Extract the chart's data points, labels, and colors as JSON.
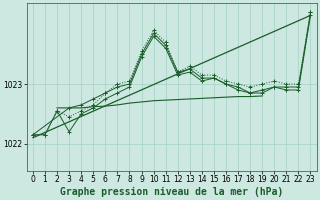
{
  "background_color": "#cce8e0",
  "grid_color": "#aad4ca",
  "line_color": "#1a5c2a",
  "xlabel": "Graphe pression niveau de la mer (hPa)",
  "xlabel_fontsize": 7,
  "ylim": [
    1021.55,
    1024.35
  ],
  "xlim": [
    -0.5,
    23.5
  ],
  "yticks": [
    1022,
    1023
  ],
  "xticks": [
    0,
    1,
    2,
    3,
    4,
    5,
    6,
    7,
    8,
    9,
    10,
    11,
    12,
    13,
    14,
    15,
    16,
    17,
    18,
    19,
    20,
    21,
    22,
    23
  ],
  "tick_fontsize": 5.5,
  "marker_size": 2.5,
  "line_dotted_x": [
    0,
    1,
    2,
    3,
    4,
    5,
    6,
    7,
    8,
    9,
    10,
    11,
    12,
    13,
    14,
    15,
    16,
    17,
    18,
    19,
    20,
    21,
    22,
    23
  ],
  "line_dotted_y": [
    1022.15,
    1022.15,
    1022.55,
    1022.45,
    1022.55,
    1022.65,
    1022.85,
    1023.0,
    1023.05,
    1023.55,
    1023.9,
    1023.7,
    1023.2,
    1023.3,
    1023.15,
    1023.15,
    1023.05,
    1023.0,
    1022.95,
    1023.0,
    1023.05,
    1023.0,
    1023.0,
    1024.2
  ],
  "line_solid1_x": [
    0,
    1,
    2,
    3,
    4,
    5,
    6,
    7,
    8,
    9,
    10,
    11,
    12,
    13,
    14,
    15,
    16,
    17,
    18,
    19,
    20,
    21,
    22,
    23
  ],
  "line_solid1_y": [
    1022.15,
    1022.15,
    1022.55,
    1022.2,
    1022.5,
    1022.6,
    1022.75,
    1022.85,
    1022.95,
    1023.45,
    1023.8,
    1023.6,
    1023.15,
    1023.2,
    1023.05,
    1023.1,
    1023.0,
    1022.9,
    1022.85,
    1022.9,
    1022.95,
    1022.9,
    1022.9,
    1024.15
  ],
  "line_solid2_x": [
    0,
    3,
    4,
    5,
    6,
    7,
    8,
    9,
    10,
    11,
    12,
    13,
    14,
    15,
    16,
    17,
    18,
    19,
    20,
    21,
    22,
    23
  ],
  "line_solid2_y": [
    1022.15,
    1022.6,
    1022.65,
    1022.75,
    1022.85,
    1022.95,
    1023.0,
    1023.5,
    1023.85,
    1023.65,
    1023.2,
    1023.25,
    1023.1,
    1023.1,
    1023.0,
    1022.95,
    1022.85,
    1022.85,
    1022.95,
    1022.95,
    1022.95,
    1024.2
  ],
  "line_flat_x": [
    2,
    3,
    4,
    5,
    6,
    7,
    8,
    9,
    10,
    11,
    12,
    13,
    14,
    15,
    16,
    17,
    18,
    19
  ],
  "line_flat_y": [
    1022.6,
    1022.6,
    1022.6,
    1022.62,
    1022.63,
    1022.65,
    1022.68,
    1022.7,
    1022.72,
    1022.73,
    1022.74,
    1022.75,
    1022.76,
    1022.77,
    1022.78,
    1022.79,
    1022.79,
    1022.8
  ],
  "line_trend_x": [
    0,
    23
  ],
  "line_trend_y": [
    1022.1,
    1024.15
  ]
}
